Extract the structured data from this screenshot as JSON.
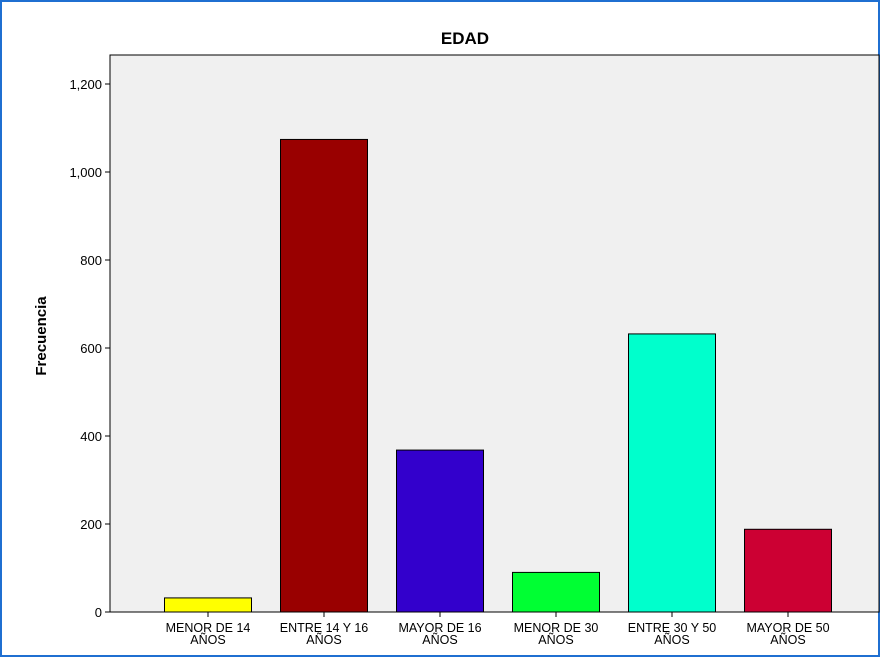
{
  "chart_data": {
    "type": "bar",
    "title": "EDAD",
    "xlabel": "",
    "ylabel": "Frecuencia",
    "categories": [
      [
        "MENOR DE 14",
        "AÑOS"
      ],
      [
        "ENTRE 14 Y 16",
        "AÑOS"
      ],
      [
        "MAYOR DE 16",
        "AÑOS"
      ],
      [
        "MENOR DE 30",
        "AÑOS"
      ],
      [
        "ENTRE 30 Y 50",
        "AÑOS"
      ],
      [
        "MAYOR DE 50",
        "AÑOS"
      ]
    ],
    "values": [
      32,
      1074,
      368,
      90,
      632,
      188
    ],
    "colors": [
      "#ffff00",
      "#990000",
      "#3300cc",
      "#00ff33",
      "#00ffcc",
      "#cc0033"
    ],
    "ylim": [
      0,
      1200
    ],
    "yticks": [
      0,
      200,
      400,
      600,
      800,
      1000,
      1200
    ],
    "ytick_labels": [
      "0",
      "200",
      "400",
      "600",
      "800",
      "1,000",
      "1,200"
    ],
    "grid": false,
    "plot_background": "#f0f0f0",
    "frame_color": "#1f6fd1"
  }
}
